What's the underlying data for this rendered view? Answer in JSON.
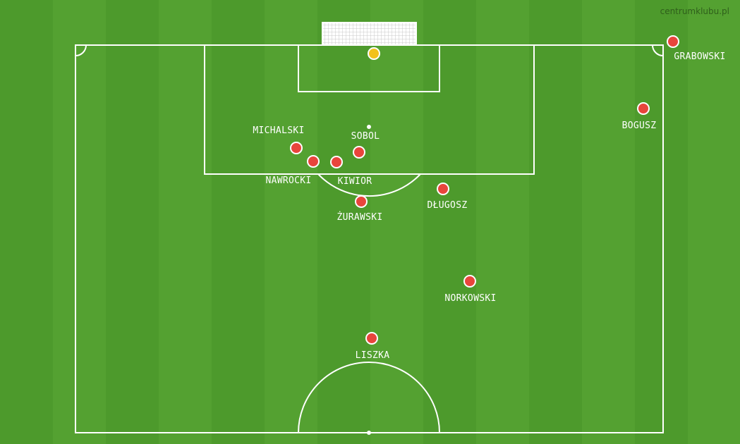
{
  "watermark": "centrumklubu.pl",
  "colors": {
    "player": "#e8453c",
    "ball": "#f2c21b",
    "lines": "#ffffff"
  },
  "players": [
    {
      "name": "GRABOWSKI"
    },
    {
      "name": "BOGUSZ"
    },
    {
      "name": "MICHALSKI"
    },
    {
      "name": "SOBOL"
    },
    {
      "name": "NAWROCKI"
    },
    {
      "name": "KIWIOR"
    },
    {
      "name": "ŻURAWSKI"
    },
    {
      "name": "DŁUGOSZ"
    },
    {
      "name": "NORKOWSKI"
    },
    {
      "name": "LISZKA"
    }
  ],
  "ball": {
    "icon": "ball-icon"
  }
}
